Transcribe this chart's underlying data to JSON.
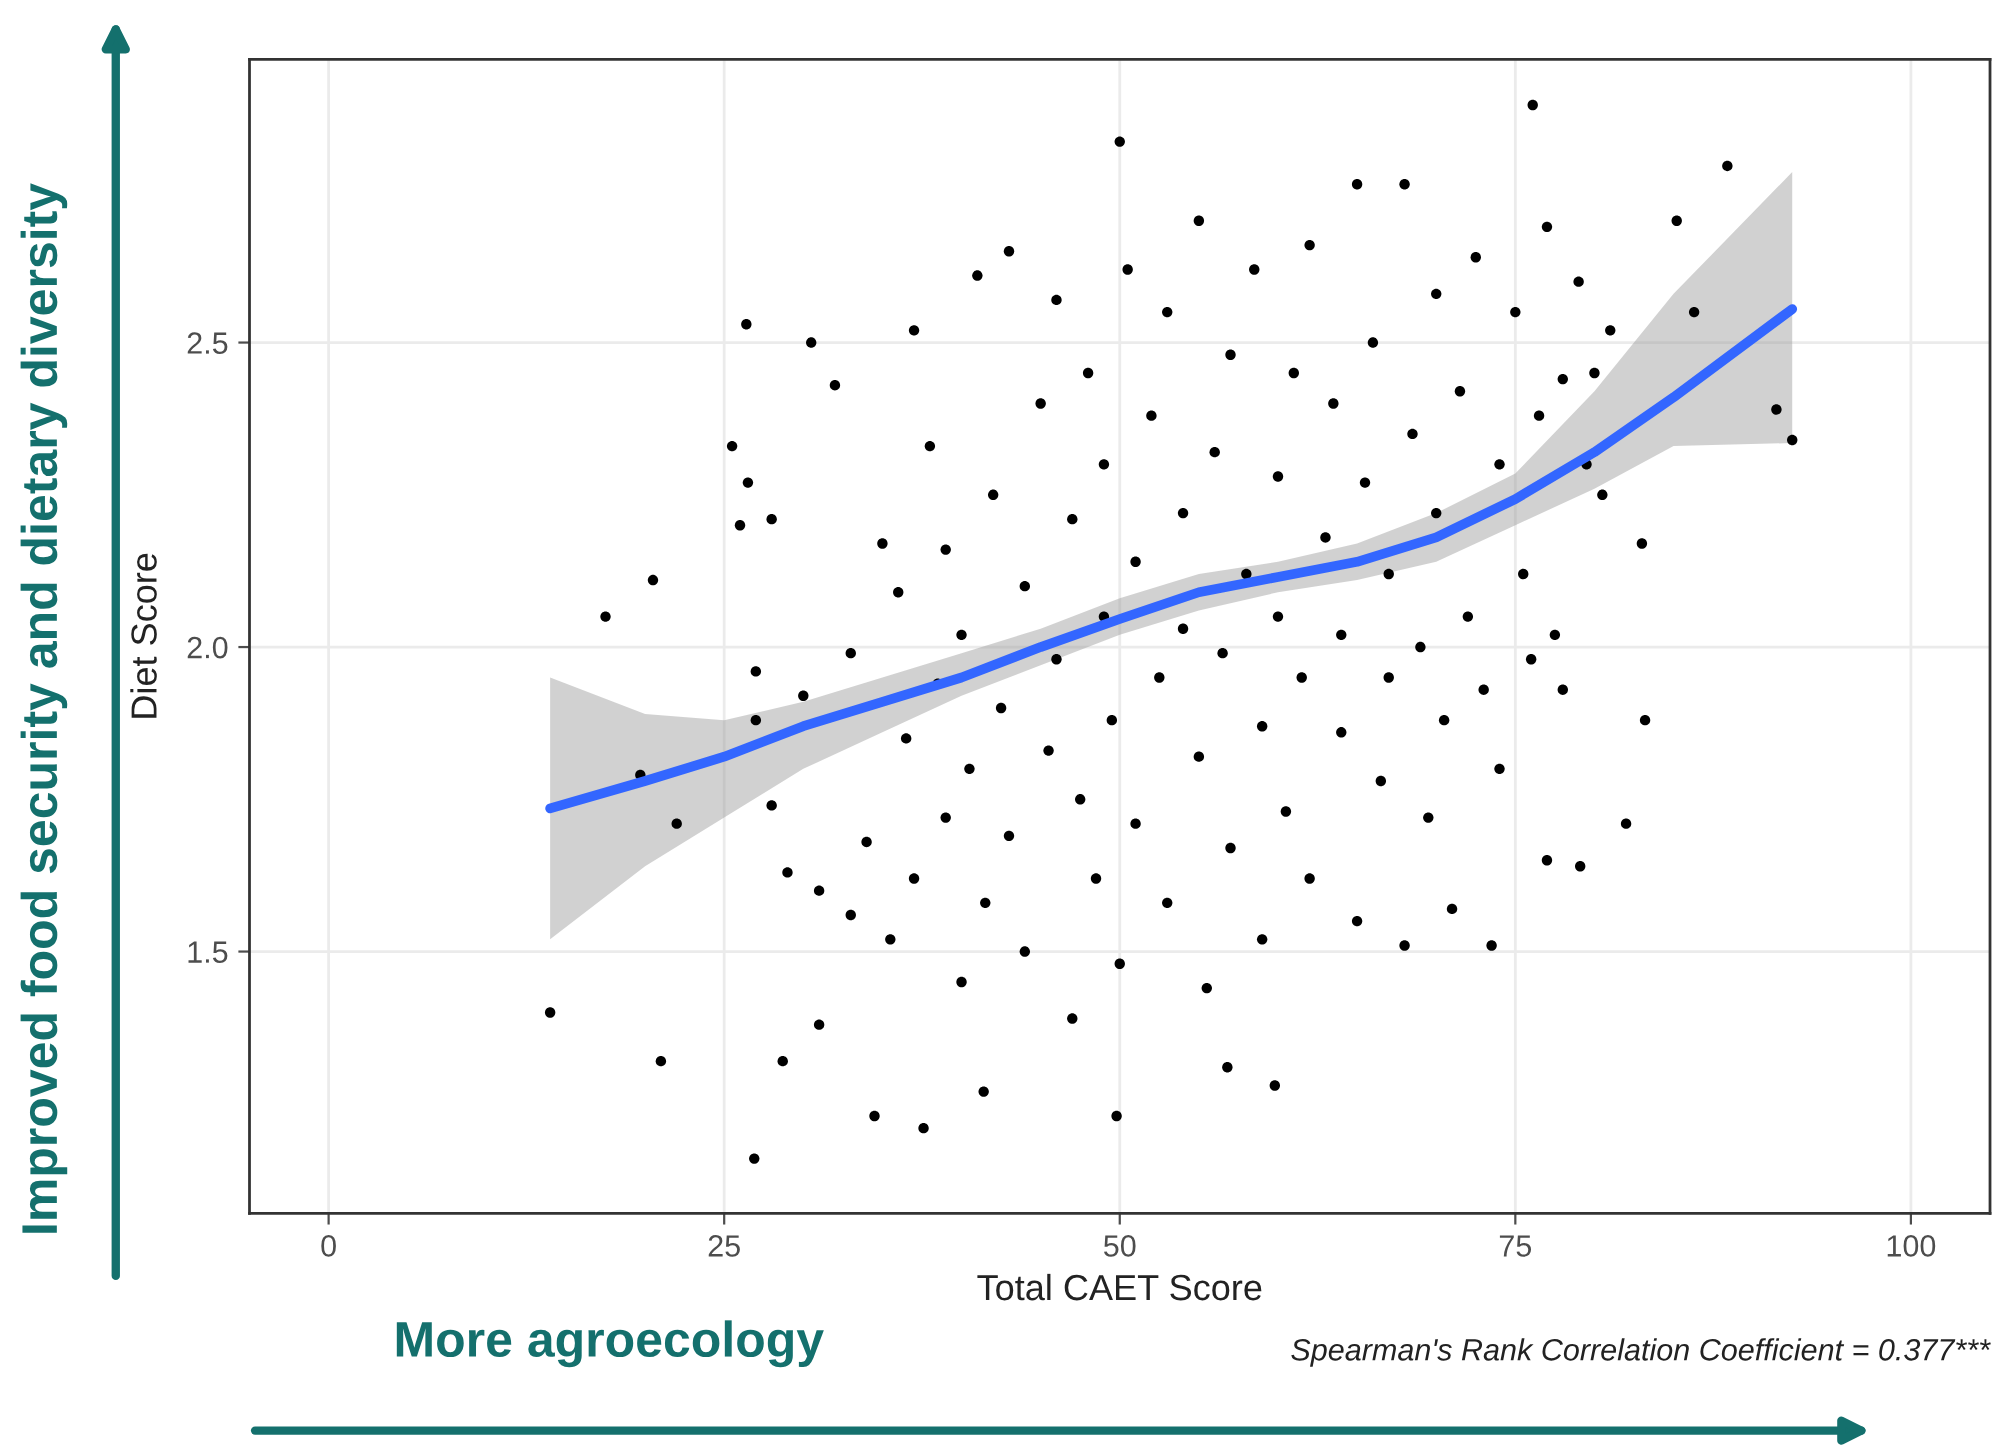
{
  "chart_data": {
    "type": "scatter",
    "xlabel": "Total CAET Score",
    "ylabel": "Diet Score",
    "annotations": [
      "Spearman's Rank Correlation Coefficient = 0.377***",
      "Improved food security and dietary diversity",
      "More agroecology"
    ],
    "xlim": [
      -5,
      105
    ],
    "ylim": [
      1.07,
      2.965
    ],
    "xticks": [
      0,
      25,
      50,
      75,
      100
    ],
    "yticks": [
      {
        "value": 1.5,
        "label": "1.5"
      },
      {
        "value": 2.0,
        "label": "2.0"
      },
      {
        "value": 2.5,
        "label": "2.5"
      }
    ],
    "grid": true,
    "series": [
      {
        "color": "#000000",
        "marker": "circle",
        "x": [
          14,
          17.5,
          20.5,
          21,
          19.7,
          22,
          26.9,
          26.4,
          50,
          76.1,
          88.4,
          92.5,
          91.5,
          83.2,
          82,
          79.1,
          77,
          34.5,
          37.6,
          41.4,
          49.8,
          59.8,
          56.8,
          28.7,
          31,
          85.2,
          86.3,
          83,
          25.5,
          26,
          26.5,
          27,
          27,
          28,
          28,
          29,
          30,
          30.5,
          31,
          32,
          33,
          33,
          34,
          35,
          35.5,
          36,
          36.5,
          37,
          37,
          38,
          38.5,
          39,
          39,
          40,
          40,
          40.5,
          41,
          41.5,
          42,
          42.5,
          43,
          43,
          44,
          44,
          45,
          45.5,
          46,
          46,
          47,
          47,
          47.5,
          48,
          48.5,
          49,
          49,
          49.5,
          50,
          50.5,
          51,
          51,
          52,
          52.5,
          53,
          53,
          54,
          54,
          55,
          55,
          55.5,
          56,
          56.5,
          57,
          57,
          58,
          58.5,
          59,
          59,
          60,
          60,
          60.5,
          61,
          61.5,
          62,
          62,
          63,
          63.5,
          64,
          64,
          65,
          65,
          65.5,
          66,
          66.5,
          67,
          67,
          68,
          68,
          68.5,
          69,
          69.5,
          70,
          70,
          70.5,
          71,
          71.5,
          72,
          72.5,
          73,
          73.5,
          74,
          74,
          75,
          75.5,
          76,
          76.5,
          77,
          77.5,
          78,
          78,
          79,
          79.5,
          80,
          80.5,
          81
        ],
        "values": [
          1.4,
          2.05,
          2.11,
          1.32,
          1.79,
          1.71,
          1.16,
          2.53,
          2.83,
          2.89,
          2.79,
          2.34,
          2.39,
          1.88,
          1.71,
          1.64,
          1.65,
          1.23,
          1.21,
          1.27,
          1.23,
          1.28,
          1.31,
          1.32,
          1.38,
          2.7,
          2.55,
          2.17,
          2.33,
          2.2,
          2.27,
          1.96,
          1.88,
          2.21,
          1.74,
          1.63,
          1.92,
          2.5,
          1.6,
          2.43,
          1.99,
          1.56,
          1.68,
          2.17,
          1.52,
          2.09,
          1.85,
          2.52,
          1.62,
          2.33,
          1.94,
          1.72,
          2.16,
          1.45,
          2.02,
          1.8,
          2.61,
          1.58,
          2.25,
          1.9,
          2.65,
          1.69,
          2.1,
          1.5,
          2.4,
          1.83,
          2.57,
          1.98,
          1.39,
          2.21,
          1.75,
          2.45,
          1.62,
          2.05,
          2.3,
          1.88,
          1.48,
          2.62,
          2.14,
          1.71,
          2.38,
          1.95,
          2.55,
          1.58,
          2.03,
          2.22,
          2.7,
          1.82,
          1.44,
          2.32,
          1.99,
          2.48,
          1.67,
          2.12,
          2.62,
          1.87,
          1.52,
          2.28,
          2.05,
          1.73,
          2.45,
          1.95,
          2.66,
          1.62,
          2.18,
          2.4,
          1.86,
          2.02,
          2.76,
          1.55,
          2.27,
          2.5,
          1.78,
          2.12,
          1.95,
          2.76,
          1.51,
          2.35,
          2.0,
          1.72,
          2.58,
          2.22,
          1.88,
          1.57,
          2.42,
          2.05,
          2.64,
          1.93,
          1.51,
          2.3,
          1.8,
          2.55,
          2.12,
          1.98,
          2.38,
          2.69,
          2.02,
          2.44,
          1.93,
          2.6,
          2.3,
          2.45,
          2.25,
          2.52
        ]
      },
      {
        "type": "line",
        "color": "#3366ff",
        "marker": "none",
        "x": [
          14,
          20,
          25,
          30,
          35,
          40,
          45,
          50,
          55,
          60,
          65,
          70,
          75,
          80,
          85,
          92.5
        ],
        "values": [
          1.735,
          1.78,
          1.82,
          1.87,
          1.91,
          1.95,
          2.0,
          2.046,
          2.09,
          2.115,
          2.14,
          2.18,
          2.243,
          2.32,
          2.41,
          2.555
        ],
        "lower": [
          1.52,
          1.64,
          1.72,
          1.8,
          1.86,
          1.92,
          1.97,
          2.02,
          2.06,
          2.09,
          2.11,
          2.14,
          2.2,
          2.26,
          2.33,
          2.335
        ],
        "upper": [
          1.95,
          1.89,
          1.88,
          1.91,
          1.95,
          1.99,
          2.03,
          2.08,
          2.12,
          2.14,
          2.17,
          2.22,
          2.285,
          2.42,
          2.58,
          2.78
        ]
      }
    ]
  }
}
